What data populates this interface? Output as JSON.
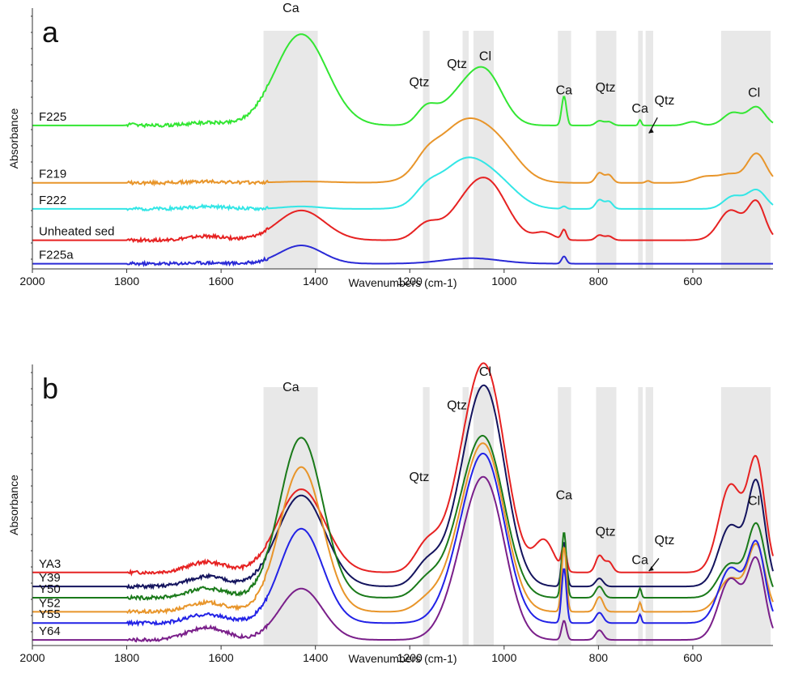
{
  "figure_type": "FTIR spectra (two stacked panels)",
  "chart_data": [
    {
      "type": "line",
      "panel_label": "a",
      "xlabel": "Wavenumbers (cm-1)",
      "ylabel": "Absorbance",
      "xlim": [
        2000,
        430
      ],
      "x_reversed": true,
      "xticks": [
        2000,
        1800,
        1600,
        1400,
        1200,
        1000,
        800,
        600
      ],
      "ylim": [
        0,
        1
      ],
      "grid": false,
      "shaded_bands": [
        {
          "label": "Ca",
          "from": 1510,
          "to": 1395
        },
        {
          "label": "Qtz",
          "from": 1172,
          "to": 1158
        },
        {
          "label": "Qtz",
          "from": 1088,
          "to": 1075
        },
        {
          "label": "Cl",
          "from": 1065,
          "to": 1022
        },
        {
          "label": "Ca",
          "from": 886,
          "to": 858
        },
        {
          "label": "Qtz",
          "from": 805,
          "to": 762
        },
        {
          "label": "Ca",
          "from": 716,
          "to": 706
        },
        {
          "label": "Qtz",
          "from": 700,
          "to": 684
        },
        {
          "label": "Cl",
          "from": 540,
          "to": 435
        }
      ],
      "band_labels": [
        {
          "text": "Ca",
          "x": 1452,
          "y": 0.985
        },
        {
          "text": "Qtz",
          "x": 1180,
          "y": 0.7
        },
        {
          "text": "Qtz",
          "x": 1100,
          "y": 0.77
        },
        {
          "text": "Cl",
          "x": 1040,
          "y": 0.8
        },
        {
          "text": "Ca",
          "x": 873,
          "y": 0.67
        },
        {
          "text": "Qtz",
          "x": 785,
          "y": 0.68
        },
        {
          "text": "Ca",
          "x": 712,
          "y": 0.6
        },
        {
          "text": "Qtz",
          "x": 660,
          "y": 0.63
        },
        {
          "text": "Cl",
          "x": 470,
          "y": 0.66
        }
      ],
      "arrow": {
        "from_x": 675,
        "from_y": 0.58,
        "to_x": 693,
        "to_y": 0.52
      },
      "series": [
        {
          "name": "F225",
          "color": "#33e633",
          "offset": 0.55,
          "amplitude": 0.35,
          "profile": "heavy_calcite"
        },
        {
          "name": "F219",
          "color": "#e8952a",
          "offset": 0.33,
          "amplitude": 0.25,
          "profile": "heated_clay"
        },
        {
          "name": "F222",
          "color": "#33e6e6",
          "offset": 0.23,
          "amplitude": 0.19,
          "profile": "heated_clay_weak"
        },
        {
          "name": "Unheated sed",
          "color": "#e62222",
          "offset": 0.11,
          "amplitude": 0.19,
          "profile": "unheated"
        },
        {
          "name": "F225a",
          "color": "#2a2ad6",
          "offset": 0.02,
          "amplitude": 0.07,
          "profile": "calcite_only"
        }
      ]
    },
    {
      "type": "line",
      "panel_label": "b",
      "xlabel": "Wavenumbers (cm-1)",
      "ylabel": "Absorbance",
      "xlim": [
        2000,
        430
      ],
      "x_reversed": true,
      "xticks": [
        2000,
        1800,
        1600,
        1400,
        1200,
        1000,
        800,
        600
      ],
      "ylim": [
        0,
        1
      ],
      "grid": false,
      "shaded_bands": [
        {
          "label": "Ca",
          "from": 1510,
          "to": 1395
        },
        {
          "label": "Qtz",
          "from": 1172,
          "to": 1158
        },
        {
          "label": "Qtz",
          "from": 1088,
          "to": 1075
        },
        {
          "label": "Cl",
          "from": 1065,
          "to": 1022
        },
        {
          "label": "Ca",
          "from": 886,
          "to": 858
        },
        {
          "label": "Qtz",
          "from": 805,
          "to": 762
        },
        {
          "label": "Ca",
          "from": 716,
          "to": 706
        },
        {
          "label": "Qtz",
          "from": 700,
          "to": 684
        },
        {
          "label": "Cl",
          "from": 540,
          "to": 435
        }
      ],
      "band_labels": [
        {
          "text": "Ca",
          "x": 1452,
          "y": 0.905
        },
        {
          "text": "Qtz",
          "x": 1180,
          "y": 0.585
        },
        {
          "text": "Qtz",
          "x": 1100,
          "y": 0.84
        },
        {
          "text": "Cl",
          "x": 1040,
          "y": 0.96
        },
        {
          "text": "Ca",
          "x": 873,
          "y": 0.52
        },
        {
          "text": "Qtz",
          "x": 785,
          "y": 0.39
        },
        {
          "text": "Ca",
          "x": 712,
          "y": 0.29
        },
        {
          "text": "Qtz",
          "x": 660,
          "y": 0.36
        },
        {
          "text": "Cl",
          "x": 470,
          "y": 0.5
        }
      ],
      "arrow": {
        "from_x": 672,
        "from_y": 0.31,
        "to_x": 693,
        "to_y": 0.265
      },
      "series": [
        {
          "name": "YA3",
          "color": "#e62222",
          "offset": 0.26,
          "amplitude": 0.74,
          "profile": "b_red"
        },
        {
          "name": "Y39",
          "color": "#14145e",
          "offset": 0.21,
          "amplitude": 0.72,
          "profile": "b_navy"
        },
        {
          "name": "Y50",
          "color": "#1a7a1a",
          "offset": 0.17,
          "amplitude": 0.67,
          "profile": "b_green"
        },
        {
          "name": "Y52",
          "color": "#e8952a",
          "offset": 0.12,
          "amplitude": 0.66,
          "profile": "b_orange"
        },
        {
          "name": "Y55",
          "color": "#2222e6",
          "offset": 0.08,
          "amplitude": 0.61,
          "profile": "b_blue"
        },
        {
          "name": "Y64",
          "color": "#7a1f8a",
          "offset": 0.02,
          "amplitude": 0.57,
          "profile": "b_purple"
        }
      ]
    }
  ]
}
